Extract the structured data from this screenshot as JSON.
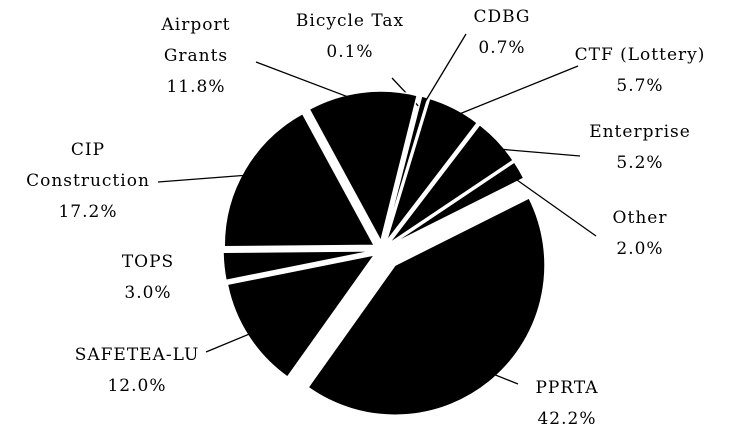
{
  "chart_data": {
    "type": "pie",
    "color": "#000000",
    "categories": [
      "Bicycle Tax",
      "CDBG",
      "CTF (Lottery)",
      "Enterprise",
      "Other",
      "PPRTA",
      "SAFETEA-LU",
      "TOPS",
      "CIP Construction",
      "Airport Grants"
    ],
    "values": [
      0.1,
      0.7,
      5.7,
      5.2,
      2.0,
      42.2,
      12.0,
      3.0,
      17.2,
      11.8
    ],
    "value_labels": [
      "0.1%",
      "0.7%",
      "5.7%",
      "5.2%",
      "2.0%",
      "42.2%",
      "12.0%",
      "3.0%",
      "17.2%",
      "11.8%"
    ]
  }
}
